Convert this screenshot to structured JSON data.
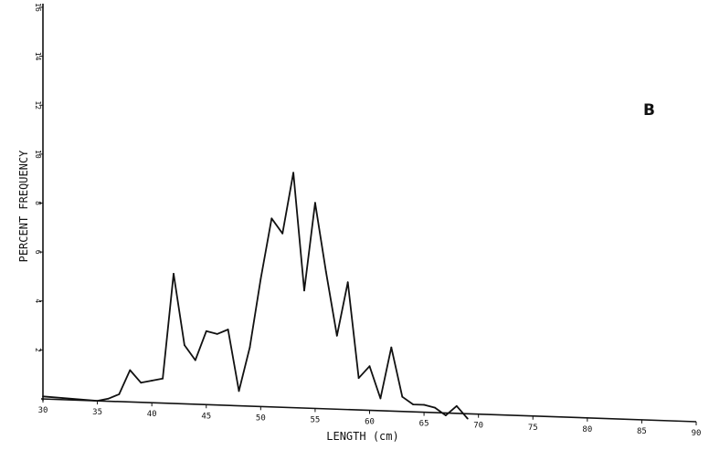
{
  "chart_data": {
    "type": "line",
    "panel_label": "B",
    "title": "",
    "xlabel": "LENGTH (cm)",
    "ylabel": "PERCENT FREQUENCY",
    "xlim": [
      30,
      90
    ],
    "ylim": [
      0,
      16
    ],
    "x_ticks": [
      "30",
      "35",
      "40",
      "45",
      "50",
      "55",
      "60",
      "65",
      "70",
      "75",
      "80",
      "85",
      "90"
    ],
    "y_ticks": [
      "2",
      "4",
      "6",
      "8",
      "10",
      "12",
      "14",
      "16"
    ],
    "grid": false,
    "legend": "none",
    "series": [
      {
        "color": "#111111",
        "x": [
          30,
          35,
          36,
          37,
          38,
          39,
          40,
          41,
          42,
          43,
          44,
          45,
          46,
          47,
          48,
          49,
          50,
          51,
          52,
          53,
          54,
          55,
          56,
          57,
          58,
          59,
          60,
          61,
          62,
          63,
          64,
          65,
          66,
          67,
          68,
          69
        ],
        "values": [
          0.1,
          0.0,
          0.1,
          0.3,
          1.3,
          0.8,
          0.9,
          1.0,
          5.3,
          2.4,
          1.8,
          3.0,
          2.9,
          3.1,
          0.6,
          2.4,
          5.2,
          7.7,
          7.1,
          9.6,
          4.8,
          8.4,
          5.6,
          3.0,
          5.2,
          1.3,
          1.8,
          0.5,
          2.6,
          0.6,
          0.3,
          0.3,
          0.2,
          -0.1,
          0.3,
          -0.2
        ]
      }
    ]
  }
}
